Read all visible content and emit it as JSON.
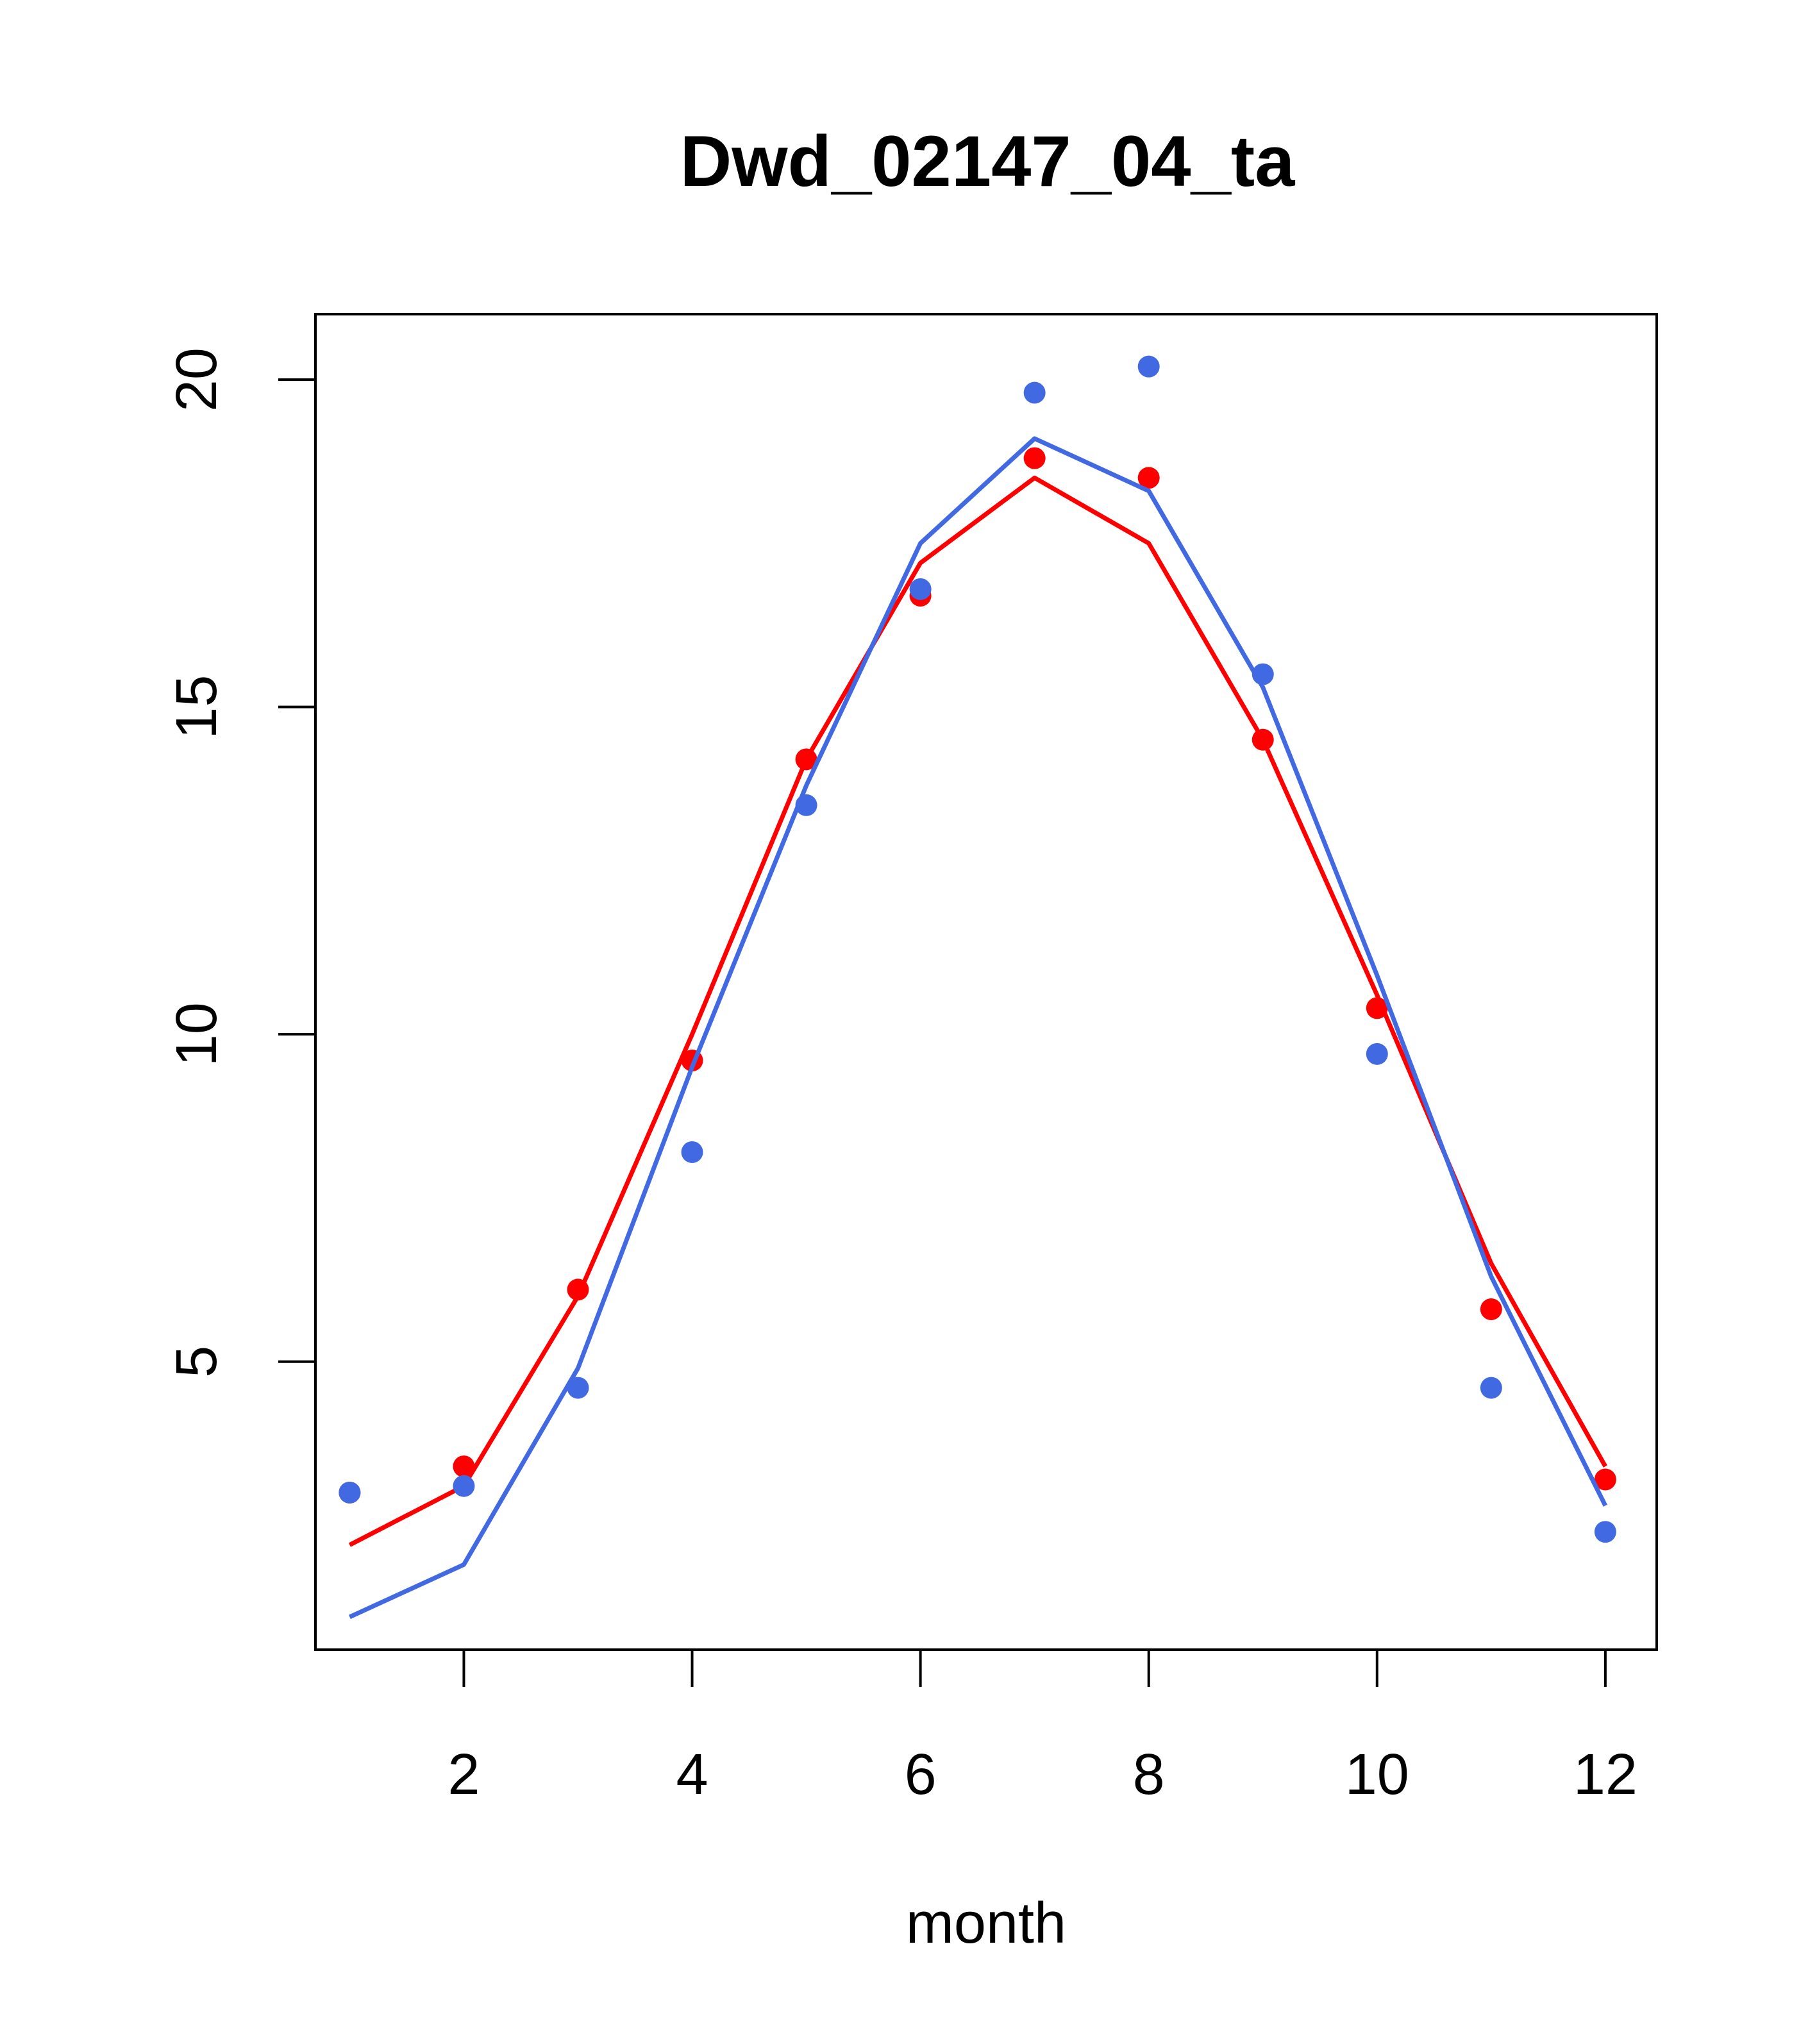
{
  "chart_data": {
    "type": "line",
    "title": "Dwd_02147_04_ta",
    "xlabel": "month",
    "ylabel": "",
    "xlim": [
      0.7,
      12.45
    ],
    "ylim": [
      0.6,
      21.0
    ],
    "xticks": [
      2,
      4,
      6,
      8,
      10,
      12
    ],
    "yticks": [
      5,
      10,
      15,
      20
    ],
    "grid": false,
    "legend": "none",
    "x": [
      1,
      2,
      3,
      4,
      5,
      6,
      7,
      8,
      9,
      10,
      11,
      12
    ],
    "series": [
      {
        "color": "#ff0000",
        "lines": [
          2.2,
          3.1,
          6.0,
          10.0,
          14.2,
          17.2,
          18.5,
          17.5,
          14.5,
          10.6,
          6.5,
          3.4
        ],
        "points": [
          3.0,
          3.4,
          6.1,
          9.6,
          14.2,
          16.7,
          18.8,
          18.5,
          14.5,
          10.4,
          5.8,
          3.2
        ]
      },
      {
        "color": "#4169e1",
        "lines": [
          1.1,
          1.9,
          4.9,
          9.5,
          13.8,
          17.5,
          19.1,
          18.3,
          15.3,
          10.9,
          6.3,
          2.8
        ],
        "points": [
          3.0,
          3.1,
          4.6,
          8.2,
          13.5,
          16.8,
          19.8,
          20.2,
          15.5,
          9.7,
          4.6,
          2.4
        ]
      }
    ]
  }
}
